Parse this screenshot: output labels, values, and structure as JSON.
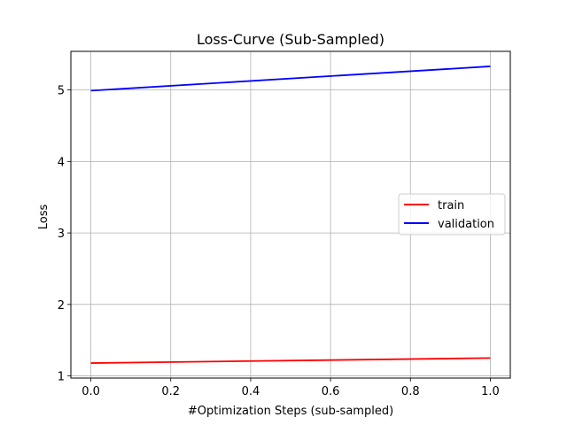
{
  "chart_data": {
    "type": "line",
    "title": "Loss-Curve (Sub-Sampled)",
    "xlabel": "#Optimization Steps (sub-sampled)",
    "ylabel": "Loss",
    "x": [
      0.0,
      1.0
    ],
    "xlim": [
      -0.05,
      1.05
    ],
    "ylim": [
      0.97,
      5.54
    ],
    "xticks": [
      "0.0",
      "0.2",
      "0.4",
      "0.6",
      "0.8",
      "1.0"
    ],
    "yticks": [
      "1",
      "2",
      "3",
      "4",
      "5"
    ],
    "grid": true,
    "legend_position": "center-right",
    "series": [
      {
        "name": "train",
        "color": "#ff0000",
        "values": [
          1.18,
          1.25
        ]
      },
      {
        "name": "validation",
        "color": "#0000ff",
        "values": [
          4.99,
          5.33
        ]
      }
    ]
  }
}
